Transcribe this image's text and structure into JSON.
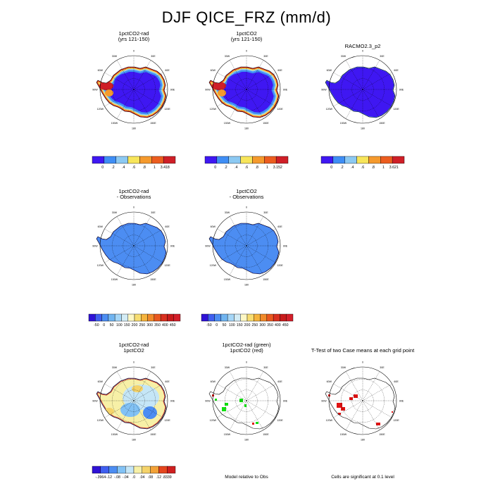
{
  "title": "DJF QICE_FRZ (mm/d)",
  "palettes": {
    "abs": [
      "#3f17f2",
      "#3f8ef5",
      "#8cc9f2",
      "#f7e55a",
      "#f59a2d",
      "#ec5d1f",
      "#cf1f27"
    ],
    "bias": [
      "#2f12d6",
      "#3f5ff0",
      "#4c8df2",
      "#70b4f0",
      "#a5d6f7",
      "#d3ecf5",
      "#fdf7c4",
      "#f7dd71",
      "#f5b33c",
      "#f18a2a",
      "#e9581f",
      "#d9301f",
      "#c81b1b",
      "#d31f2a"
    ],
    "diff": [
      "#2f12d6",
      "#3f5ff0",
      "#4c8df2",
      "#82c2f5",
      "#c5e6f7",
      "#f7f0a7",
      "#f5d36a",
      "#f3a238",
      "#e5461e",
      "#cf1f1f",
      "#c92b3a"
    ],
    "sig_green": "#11e011",
    "sig_red": "#e01313"
  },
  "panels": [
    {
      "title": "1pctCO2-rad\n(yrs 121-150)",
      "map_style": "abs",
      "colorbar": {
        "labels": [
          "0",
          ".2",
          ".4",
          ".6",
          ".8",
          "1",
          "3.418"
        ]
      }
    },
    {
      "title": "1pctCO2\n(yrs 121-150)",
      "map_style": "abs",
      "colorbar": {
        "labels": [
          "0",
          ".2",
          ".4",
          ".6",
          ".8",
          "1",
          "3.152"
        ]
      }
    },
    {
      "title": "RACMO2.3_p2",
      "map_style": "abs_obs",
      "colorbar": {
        "labels": [
          "0",
          ".2",
          ".4",
          ".6",
          ".8",
          "1",
          "3.621"
        ]
      }
    },
    {
      "title": "1pctCO2-rad\n- Observations",
      "map_style": "bias",
      "colorbar": {
        "labels": [
          "-50",
          "0",
          "50",
          "100",
          "150",
          "200",
          "250",
          "300",
          "350",
          "400",
          "450"
        ]
      }
    },
    {
      "title": "1pctCO2\n- Observations",
      "map_style": "bias",
      "colorbar": {
        "labels": [
          "-50",
          "0",
          "50",
          "100",
          "150",
          "200",
          "250",
          "300",
          "350",
          "400",
          "450"
        ]
      }
    },
    {
      "title": "1pctCO2-rad\n1pctCO2",
      "map_style": "diff",
      "colorbar": {
        "labels": [
          "-.3964",
          "-.12",
          "-.08",
          "-.04",
          ".0",
          ".04",
          ".08",
          ".12",
          ".8339"
        ]
      }
    },
    {
      "title": "1pctCO2-rad (green)\n1pctCO2 (red)",
      "map_style": "sig_pair",
      "footnote": "Model relative to Obs"
    },
    {
      "title": "T-Test of two Case means at each grid point",
      "map_style": "sig_single",
      "footnote": "Cells are significant at 0.1 level"
    }
  ],
  "map_labels": {
    "lon": [
      "0",
      "30E",
      "60E",
      "90E",
      "120E",
      "150E",
      "180",
      "150W",
      "120W",
      "90W",
      "60W",
      "30W"
    ]
  }
}
